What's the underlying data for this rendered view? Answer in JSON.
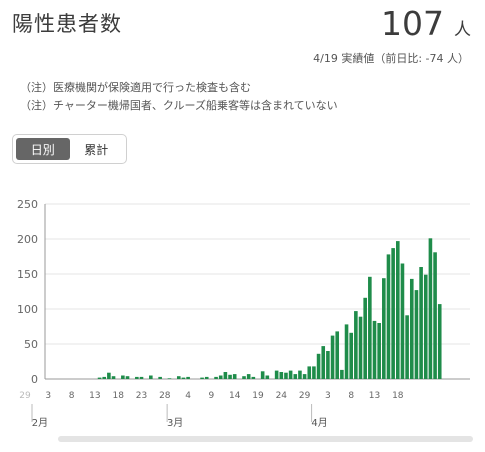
{
  "header": {
    "title": "陽性患者数",
    "value": "107",
    "unit": "人",
    "date_text": "4/19 実績値（前日比: -74 人）"
  },
  "notes": [
    "（注）医療機関が保険適用で行った検査も含む",
    "（注）チャーター機帰国者、クルーズ船乗客等は含まれていない"
  ],
  "toggle": {
    "daily_label": "日別",
    "cumulative_label": "累計",
    "selected": "daily"
  },
  "colors": {
    "bar": "#1f8c4a",
    "grid": "#e4e4e4",
    "axis": "#999999"
  },
  "chart_data": {
    "type": "bar",
    "xlabel": "",
    "ylabel": "",
    "ylim": [
      0,
      250
    ],
    "yticks": [
      0,
      50,
      100,
      150,
      200,
      250
    ],
    "x_tick_labels": [
      "29",
      "3",
      "8",
      "13",
      "18",
      "23",
      "28",
      "4",
      "9",
      "14",
      "19",
      "24",
      "29",
      "3",
      "8",
      "13",
      "18"
    ],
    "month_labels": [
      "2月",
      "3月",
      "4月"
    ],
    "values": [
      0,
      0,
      0,
      0,
      0,
      0,
      0,
      0,
      0,
      0,
      0,
      0,
      0,
      0,
      0,
      0,
      2,
      3,
      9,
      4,
      0,
      5,
      4,
      0,
      3,
      3,
      0,
      5,
      0,
      3,
      0,
      1,
      0,
      4,
      2,
      3,
      0,
      0,
      2,
      3,
      0,
      3,
      5,
      10,
      6,
      7,
      0,
      4,
      7,
      3,
      0,
      11,
      5,
      0,
      12,
      10,
      9,
      12,
      7,
      12,
      7,
      18,
      18,
      36,
      47,
      40,
      62,
      68,
      13,
      78,
      66,
      97,
      89,
      116,
      146,
      83,
      80,
      144,
      178,
      187,
      197,
      165,
      91,
      143,
      127,
      160,
      149,
      201,
      181,
      107
    ]
  }
}
